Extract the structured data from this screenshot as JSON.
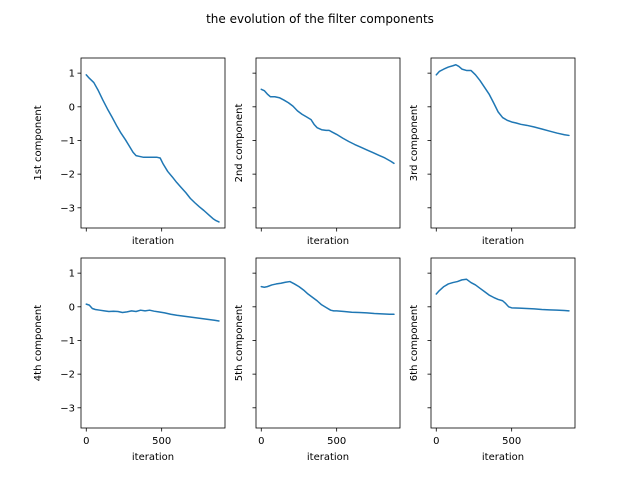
{
  "figure_title": "the evolution of the filter components",
  "chart_data": {
    "type": "line",
    "title": "the evolution of the filter components",
    "layout": "2x3 small multiples, shared x and y axes",
    "xlim": [
      -35,
      920
    ],
    "ylim": [
      -3.6,
      1.45
    ],
    "xticks": [
      0,
      500
    ],
    "yticks": [
      1,
      0,
      -1,
      -2,
      -3
    ],
    "xtick_labels": [
      "0",
      "500"
    ],
    "ytick_labels": [
      "1",
      "0",
      "−1",
      "−2",
      "−3"
    ],
    "line_color": "#1f77b4",
    "grid": false,
    "legend": "none",
    "panels": [
      {
        "xlabel": "iteration",
        "ylabel": "1st component",
        "x": [
          0,
          20,
          50,
          80,
          110,
          140,
          170,
          200,
          230,
          260,
          290,
          310,
          330,
          350,
          380,
          410,
          440,
          470,
          490,
          510,
          540,
          570,
          600,
          630,
          660,
          690,
          720,
          750,
          780,
          810,
          840,
          860,
          880
        ],
        "y": [
          0.95,
          0.85,
          0.72,
          0.48,
          0.2,
          -0.06,
          -0.3,
          -0.55,
          -0.78,
          -0.98,
          -1.2,
          -1.35,
          -1.45,
          -1.47,
          -1.5,
          -1.5,
          -1.5,
          -1.5,
          -1.52,
          -1.7,
          -1.92,
          -2.08,
          -2.25,
          -2.4,
          -2.55,
          -2.72,
          -2.85,
          -2.97,
          -3.08,
          -3.2,
          -3.32,
          -3.38,
          -3.42
        ]
      },
      {
        "xlabel": "iteration",
        "ylabel": "2nd component",
        "x": [
          0,
          20,
          40,
          60,
          90,
          120,
          150,
          180,
          210,
          240,
          270,
          300,
          330,
          350,
          370,
          400,
          430,
          450,
          470,
          500,
          540,
          580,
          620,
          660,
          700,
          740,
          780,
          820,
          860,
          880
        ],
        "y": [
          0.52,
          0.48,
          0.38,
          0.3,
          0.3,
          0.27,
          0.2,
          0.12,
          0.02,
          -0.12,
          -0.22,
          -0.3,
          -0.38,
          -0.52,
          -0.62,
          -0.68,
          -0.7,
          -0.7,
          -0.75,
          -0.82,
          -0.93,
          -1.03,
          -1.12,
          -1.2,
          -1.28,
          -1.36,
          -1.44,
          -1.52,
          -1.62,
          -1.68
        ]
      },
      {
        "xlabel": "iteration",
        "ylabel": "3rd component",
        "x": [
          0,
          20,
          50,
          80,
          110,
          130,
          150,
          170,
          200,
          230,
          260,
          290,
          320,
          350,
          380,
          410,
          440,
          470,
          500,
          530,
          560,
          600,
          650,
          700,
          750,
          800,
          850,
          880
        ],
        "y": [
          0.95,
          1.05,
          1.12,
          1.18,
          1.22,
          1.25,
          1.2,
          1.12,
          1.08,
          1.08,
          0.95,
          0.78,
          0.58,
          0.38,
          0.12,
          -0.15,
          -0.32,
          -0.4,
          -0.45,
          -0.48,
          -0.52,
          -0.55,
          -0.6,
          -0.66,
          -0.72,
          -0.78,
          -0.83,
          -0.85
        ]
      },
      {
        "xlabel": "iteration",
        "ylabel": "4th component",
        "x": [
          0,
          20,
          40,
          60,
          90,
          120,
          150,
          180,
          210,
          240,
          270,
          300,
          330,
          360,
          390,
          420,
          450,
          480,
          520,
          560,
          600,
          650,
          700,
          750,
          800,
          850,
          880
        ],
        "y": [
          0.08,
          0.05,
          -0.05,
          -0.08,
          -0.1,
          -0.12,
          -0.14,
          -0.13,
          -0.14,
          -0.17,
          -0.15,
          -0.12,
          -0.14,
          -0.1,
          -0.12,
          -0.1,
          -0.13,
          -0.15,
          -0.18,
          -0.22,
          -0.25,
          -0.28,
          -0.31,
          -0.34,
          -0.37,
          -0.4,
          -0.42
        ]
      },
      {
        "xlabel": "iteration",
        "ylabel": "5th component",
        "x": [
          0,
          20,
          40,
          70,
          100,
          130,
          160,
          190,
          220,
          250,
          280,
          310,
          340,
          370,
          400,
          430,
          460,
          480,
          500,
          550,
          600,
          650,
          700,
          750,
          800,
          850,
          880
        ],
        "y": [
          0.6,
          0.58,
          0.6,
          0.65,
          0.68,
          0.7,
          0.73,
          0.75,
          0.68,
          0.6,
          0.5,
          0.38,
          0.28,
          0.18,
          0.06,
          -0.02,
          -0.1,
          -0.12,
          -0.12,
          -0.14,
          -0.16,
          -0.17,
          -0.18,
          -0.2,
          -0.21,
          -0.22,
          -0.22
        ]
      },
      {
        "xlabel": "iteration",
        "ylabel": "6th component",
        "x": [
          0,
          20,
          50,
          80,
          110,
          140,
          170,
          200,
          230,
          260,
          290,
          320,
          350,
          380,
          410,
          440,
          460,
          480,
          500,
          550,
          600,
          650,
          700,
          750,
          800,
          850,
          880
        ],
        "y": [
          0.38,
          0.48,
          0.6,
          0.68,
          0.72,
          0.75,
          0.8,
          0.82,
          0.72,
          0.65,
          0.55,
          0.45,
          0.35,
          0.28,
          0.22,
          0.18,
          0.1,
          0.0,
          -0.03,
          -0.04,
          -0.05,
          -0.06,
          -0.08,
          -0.09,
          -0.1,
          -0.11,
          -0.12
        ]
      }
    ]
  }
}
